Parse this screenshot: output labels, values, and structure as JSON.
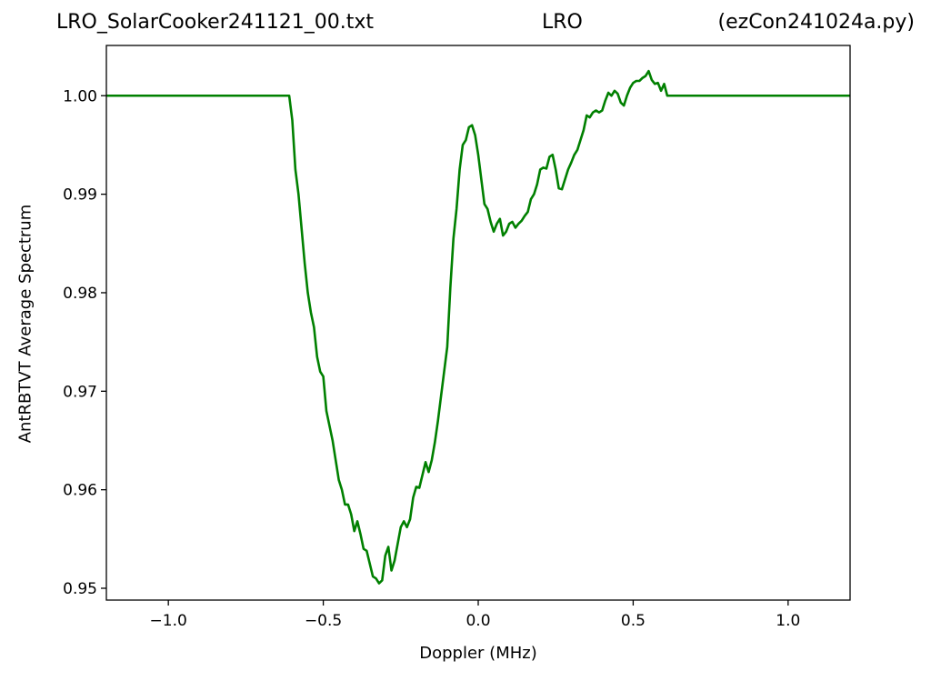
{
  "chart_data": {
    "type": "line",
    "title_left": "LRO_SolarCooker241121_00.txt",
    "title_center": "LRO",
    "title_right": "(ezCon241024a.py)",
    "xlabel": "Doppler (MHz)",
    "ylabel": "AntRBTVT Average Spectrum",
    "xlim": [
      -1.2,
      1.2
    ],
    "ylim": [
      0.9488,
      1.0051
    ],
    "xticks": [
      -1.0,
      -0.5,
      0.0,
      0.5,
      1.0
    ],
    "xtick_labels": [
      "−1.0",
      "−0.5",
      "0.0",
      "0.5",
      "1.0"
    ],
    "yticks": [
      0.95,
      0.96,
      0.97,
      0.98,
      0.99,
      1.0
    ],
    "ytick_labels": [
      "0.95",
      "0.96",
      "0.97",
      "0.98",
      "0.99",
      "1.00"
    ],
    "grid": false,
    "legend": false,
    "series": [
      {
        "color": "#008000",
        "x": [
          -1.2,
          -0.61,
          -0.6,
          -0.59,
          -0.58,
          -0.57,
          -0.56,
          -0.55,
          -0.54,
          -0.53,
          -0.52,
          -0.51,
          -0.5,
          -0.49,
          -0.48,
          -0.47,
          -0.46,
          -0.45,
          -0.44,
          -0.43,
          -0.42,
          -0.41,
          -0.4,
          -0.39,
          -0.38,
          -0.37,
          -0.36,
          -0.35,
          -0.34,
          -0.33,
          -0.32,
          -0.31,
          -0.3,
          -0.29,
          -0.28,
          -0.27,
          -0.26,
          -0.25,
          -0.24,
          -0.23,
          -0.22,
          -0.21,
          -0.2,
          -0.19,
          -0.18,
          -0.17,
          -0.16,
          -0.15,
          -0.14,
          -0.13,
          -0.12,
          -0.11,
          -0.1,
          -0.09,
          -0.08,
          -0.07,
          -0.06,
          -0.05,
          -0.04,
          -0.03,
          -0.02,
          -0.01,
          0.0,
          0.01,
          0.02,
          0.03,
          0.04,
          0.05,
          0.06,
          0.07,
          0.08,
          0.09,
          0.1,
          0.11,
          0.12,
          0.13,
          0.14,
          0.15,
          0.16,
          0.17,
          0.18,
          0.19,
          0.2,
          0.21,
          0.22,
          0.23,
          0.24,
          0.25,
          0.26,
          0.27,
          0.28,
          0.29,
          0.3,
          0.31,
          0.32,
          0.33,
          0.34,
          0.35,
          0.36,
          0.37,
          0.38,
          0.39,
          0.4,
          0.41,
          0.42,
          0.43,
          0.44,
          0.45,
          0.46,
          0.47,
          0.48,
          0.49,
          0.5,
          0.51,
          0.52,
          0.53,
          0.54,
          0.55,
          0.56,
          0.57,
          0.58,
          0.59,
          0.6,
          0.61,
          1.2
        ],
        "y": [
          1.0,
          1.0,
          0.9975,
          0.9925,
          0.99,
          0.9865,
          0.983,
          0.98,
          0.978,
          0.9765,
          0.9735,
          0.972,
          0.9715,
          0.968,
          0.9665,
          0.965,
          0.963,
          0.961,
          0.96,
          0.9585,
          0.9585,
          0.9575,
          0.9558,
          0.9568,
          0.9555,
          0.954,
          0.9538,
          0.9525,
          0.9512,
          0.951,
          0.9505,
          0.9508,
          0.9533,
          0.9542,
          0.9518,
          0.9528,
          0.9545,
          0.9562,
          0.9568,
          0.9562,
          0.957,
          0.9592,
          0.9603,
          0.9602,
          0.9615,
          0.9628,
          0.9618,
          0.963,
          0.9648,
          0.967,
          0.9695,
          0.972,
          0.9745,
          0.9805,
          0.9855,
          0.9885,
          0.9925,
          0.995,
          0.9955,
          0.9968,
          0.997,
          0.996,
          0.994,
          0.9915,
          0.989,
          0.9885,
          0.9872,
          0.9862,
          0.987,
          0.9875,
          0.9858,
          0.9862,
          0.987,
          0.9872,
          0.9866,
          0.987,
          0.9873,
          0.9878,
          0.9882,
          0.9895,
          0.99,
          0.991,
          0.9925,
          0.9927,
          0.9926,
          0.9938,
          0.994,
          0.9925,
          0.9906,
          0.9905,
          0.9915,
          0.9925,
          0.9932,
          0.994,
          0.9945,
          0.9955,
          0.9965,
          0.998,
          0.9978,
          0.9983,
          0.9985,
          0.9983,
          0.9985,
          0.9995,
          1.0003,
          1.0,
          1.0005,
          1.0002,
          0.9993,
          0.999,
          1.0,
          1.0008,
          1.0013,
          1.0015,
          1.0015,
          1.0018,
          1.002,
          1.0025,
          1.0016,
          1.0012,
          1.0013,
          1.0005,
          1.0012,
          1.0,
          1.0
        ]
      }
    ]
  }
}
